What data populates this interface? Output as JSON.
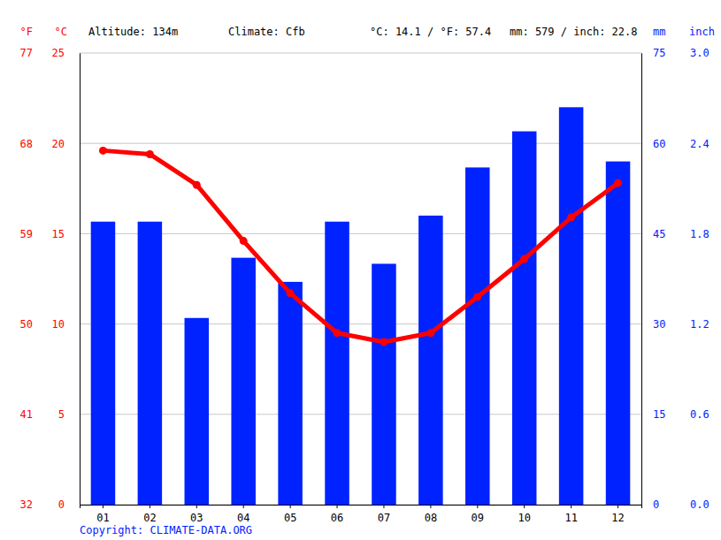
{
  "chart_data": {
    "type": "bar",
    "annotations": [
      "Altitude: 134m",
      "Climate: Cfb",
      "°C: 14.1 / °F: 57.4",
      "mm: 579 / inch: 22.8",
      "Copyright: CLIMATE-DATA.ORG"
    ],
    "categories": [
      "01",
      "02",
      "03",
      "04",
      "05",
      "06",
      "07",
      "08",
      "09",
      "10",
      "11",
      "12"
    ],
    "series": [
      {
        "type": "bar",
        "axis": "y2",
        "color": "#0022ff",
        "values": [
          47,
          47,
          31,
          41,
          37,
          47,
          40,
          48,
          56,
          62,
          66,
          57
        ]
      },
      {
        "type": "line",
        "color": "#ff0000",
        "marker": "circle",
        "values": [
          19.6,
          19.4,
          17.7,
          14.6,
          11.7,
          9.5,
          9.0,
          9.5,
          11.5,
          13.6,
          15.9,
          17.8
        ]
      }
    ],
    "y_label": "°C",
    "ylim": [
      0,
      25
    ],
    "yticks": [
      0,
      5,
      10,
      15,
      20,
      25
    ],
    "y3_label": "°F",
    "y3lim": [
      32,
      77
    ],
    "y3ticks": [
      32,
      41,
      50,
      59,
      68,
      77
    ],
    "y2_label": "mm",
    "y2lim": [
      0,
      75
    ],
    "y2ticks": [
      0,
      15,
      30,
      45,
      60,
      75
    ],
    "y4_label": "inch",
    "y4lim": [
      0,
      3
    ],
    "y4ticks": [
      {
        "value": 0,
        "label": "0.0"
      },
      0.6,
      1.2,
      1.8,
      2.4,
      {
        "value": 3,
        "label": "3.0"
      }
    ],
    "grid": true
  }
}
